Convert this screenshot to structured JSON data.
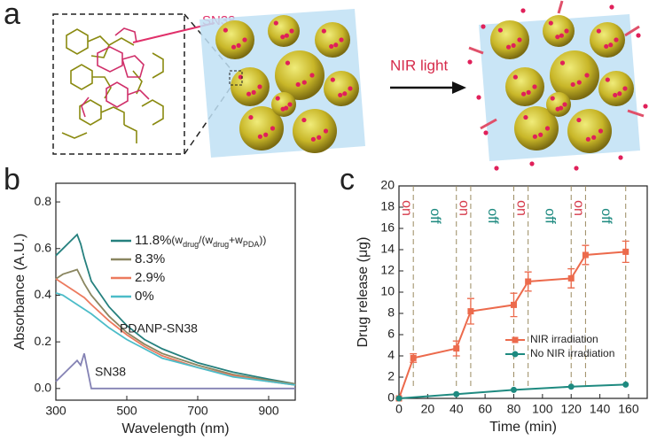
{
  "schematic": {
    "panel_label": "a",
    "drug_label": "SN38",
    "arrow_label": "NIR light"
  },
  "chart_data": [
    {
      "type": "line",
      "panel_label": "b",
      "x_label": "Wavelength (nm)",
      "y_label": "Absorbance (A.U.)",
      "xlim": [
        300,
        975
      ],
      "xticks": [
        300,
        500,
        700,
        900
      ],
      "ylim": [
        -0.05,
        0.88
      ],
      "yticks": [
        {
          "value": 0,
          "label": "0.0"
        },
        0.2,
        0.4,
        0.6,
        0.8
      ],
      "x": [
        300,
        320,
        340,
        360,
        370,
        380,
        400,
        450,
        500,
        550,
        600,
        700,
        800,
        900,
        975
      ],
      "series": [
        {
          "name": "11.8%",
          "color": "#25807e",
          "values": [
            0.57,
            0.6,
            0.63,
            0.66,
            0.62,
            0.56,
            0.46,
            0.35,
            0.27,
            0.21,
            0.17,
            0.11,
            0.07,
            0.04,
            0.02
          ]
        },
        {
          "name": "8.3%",
          "color": "#8a8660",
          "values": [
            0.47,
            0.49,
            0.5,
            0.51,
            0.48,
            0.45,
            0.4,
            0.31,
            0.24,
            0.19,
            0.15,
            0.1,
            0.06,
            0.035,
            0.02
          ]
        },
        {
          "name": "2.9%",
          "color": "#ec7a5e",
          "values": [
            0.47,
            0.45,
            0.43,
            0.41,
            0.4,
            0.39,
            0.36,
            0.29,
            0.23,
            0.18,
            0.14,
            0.09,
            0.055,
            0.03,
            0.015
          ]
        },
        {
          "name": "0%",
          "color": "#4cbcc8",
          "values": [
            0.41,
            0.4,
            0.38,
            0.36,
            0.35,
            0.34,
            0.32,
            0.26,
            0.21,
            0.17,
            0.13,
            0.09,
            0.05,
            0.03,
            0.015
          ]
        },
        {
          "name": "SN38",
          "color": "#8482b4",
          "values": [
            0.03,
            0.06,
            0.09,
            0.12,
            0.1,
            0.15,
            0.0,
            0.0,
            0.0,
            0.0,
            0.0,
            0.0,
            0.0,
            0.0,
            0.0
          ]
        }
      ],
      "legend_note_parts": [
        "(w",
        "drug",
        "/(w",
        "drug",
        "+w",
        "PDA",
        "))"
      ],
      "annotations": [
        "PDANP-SN38",
        "SN38"
      ]
    },
    {
      "type": "errorline",
      "panel_label": "c",
      "x_label": "Time (min)",
      "y_label": "Drug release (μg)",
      "xlim": [
        0,
        173
      ],
      "xticks": [
        0,
        20,
        40,
        60,
        80,
        100,
        120,
        140,
        160
      ],
      "ylim": [
        0,
        20
      ],
      "yticks": [
        0,
        2,
        4,
        6,
        8,
        10,
        12,
        14,
        16,
        18,
        20
      ],
      "series": [
        {
          "name": "NIR irradiation",
          "color": "#ec6a4c",
          "marker": "square",
          "x": [
            0,
            10,
            40,
            50,
            80,
            90,
            120,
            130,
            158
          ],
          "values": [
            0,
            3.8,
            4.7,
            8.2,
            8.8,
            11.0,
            11.3,
            13.5,
            13.8
          ],
          "errors": [
            0,
            0.4,
            0.7,
            1.2,
            1.1,
            0.9,
            0.9,
            0.9,
            1.0
          ]
        },
        {
          "name": "No NIR irradiation",
          "color": "#1e8a80",
          "marker": "circle",
          "x": [
            0,
            40,
            80,
            120,
            158
          ],
          "values": [
            0,
            0.4,
            0.8,
            1.1,
            1.3
          ]
        }
      ],
      "intervals": [
        {
          "label": "on",
          "start": 0,
          "end": 10,
          "color": "#d63a4a"
        },
        {
          "label": "off",
          "start": 10,
          "end": 40,
          "color": "#1e8a80"
        },
        {
          "label": "on",
          "start": 40,
          "end": 50,
          "color": "#d63a4a"
        },
        {
          "label": "off",
          "start": 50,
          "end": 80,
          "color": "#1e8a80"
        },
        {
          "label": "on",
          "start": 80,
          "end": 90,
          "color": "#d63a4a"
        },
        {
          "label": "off",
          "start": 90,
          "end": 120,
          "color": "#1e8a80"
        },
        {
          "label": "on",
          "start": 120,
          "end": 130,
          "color": "#d63a4a"
        },
        {
          "label": "off",
          "start": 130,
          "end": 158,
          "color": "#1e8a80"
        }
      ]
    }
  ]
}
